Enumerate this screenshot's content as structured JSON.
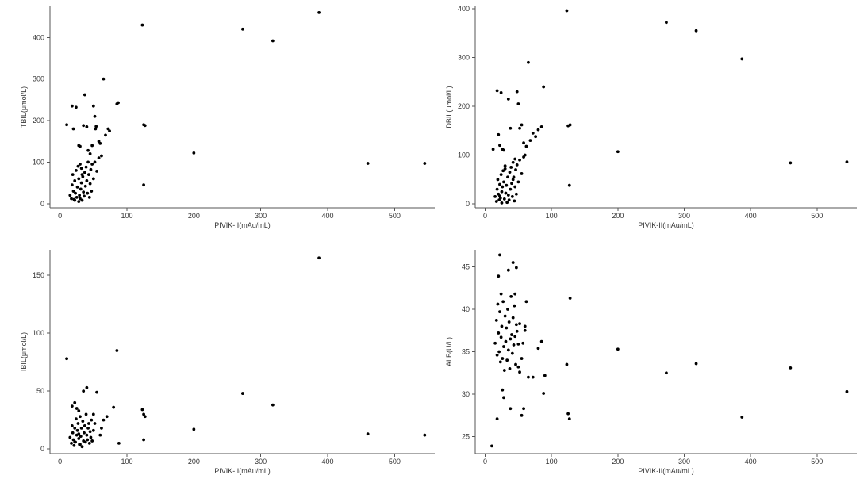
{
  "chart_data": [
    {
      "type": "scatter",
      "xlabel": "PIVIK-II(mAu/mL)",
      "ylabel": "TBIL(μmol/L)",
      "xlim": [
        -15,
        560
      ],
      "ylim": [
        -10,
        475
      ],
      "xticks": [
        0,
        100,
        200,
        300,
        400,
        500
      ],
      "yticks": [
        0,
        100,
        200,
        300,
        400
      ],
      "marker_color": "#000000",
      "points": [
        [
          10,
          190
        ],
        [
          18,
          235
        ],
        [
          20,
          180
        ],
        [
          24,
          232
        ],
        [
          28,
          140
        ],
        [
          30,
          138
        ],
        [
          32,
          85
        ],
        [
          33,
          70
        ],
        [
          35,
          188
        ],
        [
          37,
          262
        ],
        [
          40,
          185
        ],
        [
          42,
          128
        ],
        [
          45,
          120
        ],
        [
          48,
          140
        ],
        [
          50,
          235
        ],
        [
          52,
          210
        ],
        [
          53,
          180
        ],
        [
          54,
          186
        ],
        [
          58,
          150
        ],
        [
          60,
          145
        ],
        [
          62,
          115
        ],
        [
          65,
          300
        ],
        [
          68,
          165
        ],
        [
          72,
          180
        ],
        [
          74,
          175
        ],
        [
          85,
          240
        ],
        [
          87,
          243
        ],
        [
          123,
          430
        ],
        [
          125,
          190
        ],
        [
          127,
          188
        ],
        [
          125,
          45
        ],
        [
          200,
          122
        ],
        [
          273,
          420
        ],
        [
          318,
          392
        ],
        [
          387,
          460
        ],
        [
          460,
          97
        ],
        [
          545,
          97
        ],
        [
          15,
          20
        ],
        [
          17,
          12
        ],
        [
          18,
          45
        ],
        [
          19,
          70
        ],
        [
          20,
          30
        ],
        [
          21,
          10
        ],
        [
          22,
          55
        ],
        [
          23,
          25
        ],
        [
          24,
          80
        ],
        [
          25,
          15
        ],
        [
          26,
          40
        ],
        [
          27,
          90
        ],
        [
          28,
          60
        ],
        [
          29,
          20
        ],
        [
          30,
          95
        ],
        [
          31,
          35
        ],
        [
          32,
          50
        ],
        [
          33,
          8
        ],
        [
          34,
          65
        ],
        [
          35,
          28
        ],
        [
          36,
          18
        ],
        [
          37,
          75
        ],
        [
          38,
          42
        ],
        [
          39,
          88
        ],
        [
          40,
          55
        ],
        [
          41,
          25
        ],
        [
          42,
          100
        ],
        [
          43,
          70
        ],
        [
          44,
          15
        ],
        [
          45,
          48
        ],
        [
          46,
          82
        ],
        [
          47,
          30
        ],
        [
          48,
          95
        ],
        [
          50,
          60
        ],
        [
          52,
          100
        ],
        [
          55,
          78
        ],
        [
          58,
          110
        ],
        [
          30,
          12
        ],
        [
          28,
          5
        ],
        [
          22,
          8
        ]
      ]
    },
    {
      "type": "scatter",
      "xlabel": "PIVIK-II(mAu/mL)",
      "ylabel": "DBIL(μmol/L)",
      "xlim": [
        -15,
        560
      ],
      "ylim": [
        -8,
        405
      ],
      "xticks": [
        0,
        100,
        200,
        300,
        400,
        500
      ],
      "yticks": [
        0,
        100,
        200,
        300,
        400
      ],
      "marker_color": "#000000",
      "points": [
        [
          12,
          112
        ],
        [
          18,
          232
        ],
        [
          20,
          142
        ],
        [
          22,
          120
        ],
        [
          24,
          228
        ],
        [
          26,
          112
        ],
        [
          28,
          110
        ],
        [
          30,
          72
        ],
        [
          35,
          215
        ],
        [
          38,
          155
        ],
        [
          42,
          50
        ],
        [
          45,
          92
        ],
        [
          48,
          230
        ],
        [
          50,
          205
        ],
        [
          52,
          155
        ],
        [
          55,
          162
        ],
        [
          58,
          125
        ],
        [
          60,
          100
        ],
        [
          62,
          118
        ],
        [
          65,
          290
        ],
        [
          68,
          130
        ],
        [
          72,
          145
        ],
        [
          76,
          138
        ],
        [
          80,
          152
        ],
        [
          85,
          158
        ],
        [
          88,
          240
        ],
        [
          123,
          396
        ],
        [
          125,
          160
        ],
        [
          128,
          162
        ],
        [
          127,
          38
        ],
        [
          200,
          107
        ],
        [
          273,
          372
        ],
        [
          318,
          355
        ],
        [
          387,
          297
        ],
        [
          460,
          84
        ],
        [
          545,
          86
        ],
        [
          15,
          15
        ],
        [
          17,
          5
        ],
        [
          18,
          30
        ],
        [
          19,
          50
        ],
        [
          20,
          20
        ],
        [
          21,
          8
        ],
        [
          22,
          40
        ],
        [
          23,
          12
        ],
        [
          24,
          60
        ],
        [
          25,
          25
        ],
        [
          26,
          35
        ],
        [
          27,
          68
        ],
        [
          28,
          45
        ],
        [
          29,
          10
        ],
        [
          30,
          78
        ],
        [
          31,
          22
        ],
        [
          32,
          38
        ],
        [
          33,
          3
        ],
        [
          34,
          55
        ],
        [
          35,
          18
        ],
        [
          36,
          8
        ],
        [
          37,
          65
        ],
        [
          38,
          30
        ],
        [
          39,
          75
        ],
        [
          40,
          42
        ],
        [
          41,
          15
        ],
        [
          42,
          85
        ],
        [
          43,
          55
        ],
        [
          44,
          6
        ],
        [
          45,
          35
        ],
        [
          46,
          70
        ],
        [
          47,
          20
        ],
        [
          48,
          80
        ],
        [
          50,
          45
        ],
        [
          52,
          90
        ],
        [
          55,
          62
        ],
        [
          58,
          96
        ],
        [
          25,
          2
        ],
        [
          22,
          16
        ]
      ]
    },
    {
      "type": "scatter",
      "xlabel": "PIVIK-II(mAu/mL)",
      "ylabel": "IBIL(μmol/L)",
      "xlim": [
        -15,
        560
      ],
      "ylim": [
        -4,
        172
      ],
      "xticks": [
        0,
        100,
        200,
        300,
        400,
        500
      ],
      "yticks": [
        0,
        50,
        100,
        150
      ],
      "marker_color": "#000000",
      "points": [
        [
          10,
          78
        ],
        [
          85,
          85
        ],
        [
          387,
          165
        ],
        [
          40,
          53
        ],
        [
          35,
          50
        ],
        [
          55,
          49
        ],
        [
          273,
          48
        ],
        [
          318,
          38
        ],
        [
          18,
          37
        ],
        [
          22,
          40
        ],
        [
          25,
          35
        ],
        [
          28,
          33
        ],
        [
          80,
          36
        ],
        [
          123,
          34
        ],
        [
          125,
          30
        ],
        [
          127,
          28
        ],
        [
          200,
          17
        ],
        [
          125,
          8
        ],
        [
          460,
          13
        ],
        [
          545,
          12
        ],
        [
          88,
          5
        ],
        [
          65,
          25
        ],
        [
          70,
          28
        ],
        [
          60,
          12
        ],
        [
          62,
          18
        ],
        [
          50,
          30
        ],
        [
          52,
          22
        ],
        [
          15,
          10
        ],
        [
          17,
          5
        ],
        [
          18,
          20
        ],
        [
          19,
          14
        ],
        [
          20,
          8
        ],
        [
          21,
          3
        ],
        [
          22,
          18
        ],
        [
          23,
          6
        ],
        [
          24,
          26
        ],
        [
          25,
          12
        ],
        [
          26,
          16
        ],
        [
          27,
          22
        ],
        [
          28,
          9
        ],
        [
          29,
          4
        ],
        [
          30,
          28
        ],
        [
          31,
          11
        ],
        [
          32,
          18
        ],
        [
          33,
          2
        ],
        [
          34,
          24
        ],
        [
          35,
          7
        ],
        [
          36,
          14
        ],
        [
          37,
          20
        ],
        [
          38,
          6
        ],
        [
          39,
          30
        ],
        [
          40,
          12
        ],
        [
          41,
          8
        ],
        [
          42,
          18
        ],
        [
          43,
          22
        ],
        [
          44,
          5
        ],
        [
          45,
          15
        ],
        [
          46,
          10
        ],
        [
          47,
          25
        ],
        [
          48,
          7
        ],
        [
          50,
          16
        ],
        [
          30,
          4
        ],
        [
          28,
          13
        ],
        [
          22,
          6
        ]
      ]
    },
    {
      "type": "scatter",
      "xlabel": "PIVIK-II(mAu/mL)",
      "ylabel": "ALB(U/L)",
      "xlim": [
        -15,
        560
      ],
      "ylim": [
        23,
        47
      ],
      "xticks": [
        0,
        100,
        200,
        300,
        400,
        500
      ],
      "yticks": [
        25,
        30,
        35,
        40,
        45
      ],
      "marker_color": "#000000",
      "points": [
        [
          10,
          23.9
        ],
        [
          18,
          27.1
        ],
        [
          22,
          46.4
        ],
        [
          20,
          43.9
        ],
        [
          24,
          41.8
        ],
        [
          26,
          30.5
        ],
        [
          28,
          29.6
        ],
        [
          35,
          44.6
        ],
        [
          38,
          28.3
        ],
        [
          42,
          45.5
        ],
        [
          45,
          41.8
        ],
        [
          47,
          44.9
        ],
        [
          50,
          33.2
        ],
        [
          52,
          32.6
        ],
        [
          55,
          27.5
        ],
        [
          58,
          28.3
        ],
        [
          60,
          37.5
        ],
        [
          62,
          40.9
        ],
        [
          65,
          32.0
        ],
        [
          72,
          32.0
        ],
        [
          80,
          35.4
        ],
        [
          85,
          36.2
        ],
        [
          88,
          30.1
        ],
        [
          90,
          32.2
        ],
        [
          123,
          33.5
        ],
        [
          125,
          27.7
        ],
        [
          127,
          27.1
        ],
        [
          128,
          41.3
        ],
        [
          200,
          35.3
        ],
        [
          273,
          32.5
        ],
        [
          318,
          33.6
        ],
        [
          387,
          27.3
        ],
        [
          460,
          33.1
        ],
        [
          545,
          30.3
        ],
        [
          15,
          36.0
        ],
        [
          17,
          38.7
        ],
        [
          18,
          34.6
        ],
        [
          19,
          40.6
        ],
        [
          20,
          37.2
        ],
        [
          21,
          35.0
        ],
        [
          22,
          39.7
        ],
        [
          23,
          33.8
        ],
        [
          24,
          36.7
        ],
        [
          25,
          38.0
        ],
        [
          26,
          34.2
        ],
        [
          27,
          40.9
        ],
        [
          28,
          35.6
        ],
        [
          29,
          32.8
        ],
        [
          30,
          39.2
        ],
        [
          31,
          36.2
        ],
        [
          32,
          37.8
        ],
        [
          33,
          34.0
        ],
        [
          34,
          40.0
        ],
        [
          35,
          35.2
        ],
        [
          36,
          38.5
        ],
        [
          37,
          33.0
        ],
        [
          38,
          36.5
        ],
        [
          39,
          41.5
        ],
        [
          40,
          37.0
        ],
        [
          41,
          34.8
        ],
        [
          42,
          39.0
        ],
        [
          43,
          35.8
        ],
        [
          44,
          40.4
        ],
        [
          45,
          36.8
        ],
        [
          46,
          33.5
        ],
        [
          47,
          38.2
        ],
        [
          48,
          37.4
        ],
        [
          50,
          35.9
        ],
        [
          52,
          38.3
        ],
        [
          55,
          34.2
        ],
        [
          57,
          36.0
        ],
        [
          60,
          38.0
        ]
      ]
    }
  ]
}
